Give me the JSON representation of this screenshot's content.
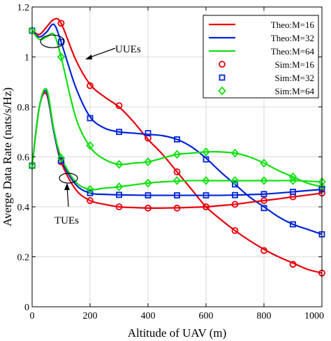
{
  "chart_data": {
    "type": "line",
    "xlabel": "Altitude of UAV (m)",
    "ylabel": "Averge Data Rate (nats/s/Hz)",
    "xlim": [
      0,
      1000
    ],
    "ylim": [
      0,
      1.2
    ],
    "xticks": [
      0,
      200,
      400,
      600,
      800,
      1000
    ],
    "yticks": [
      0,
      0.2,
      0.4,
      0.6,
      0.8,
      1,
      1.2
    ],
    "xtick_labels": [
      "0",
      "200",
      "400",
      "600",
      "800",
      "1000"
    ],
    "ytick_labels": [
      "0",
      "0.2",
      "0.4",
      "0.6",
      "0.8",
      "1",
      "1.2"
    ],
    "grid": true,
    "legend_position": "top-right",
    "colors": {
      "M16": "#e8000b",
      "M32": "#0024d8",
      "M64": "#10e010"
    },
    "series": [
      {
        "name": "Theo:M=16",
        "kind": "line",
        "group": "UUE",
        "color": "#e8000b",
        "x": [
          0,
          25,
          50,
          75,
          100,
          150,
          200,
          250,
          300,
          350,
          400,
          450,
          500,
          550,
          600,
          650,
          700,
          750,
          800,
          850,
          900,
          950,
          1000
        ],
        "y": [
          1.105,
          1.09,
          1.12,
          1.15,
          1.135,
          0.99,
          0.89,
          0.84,
          0.8,
          0.74,
          0.67,
          0.61,
          0.54,
          0.47,
          0.4,
          0.35,
          0.305,
          0.265,
          0.23,
          0.2,
          0.175,
          0.15,
          0.135
        ]
      },
      {
        "name": "Theo:M=32",
        "kind": "line",
        "group": "UUE",
        "color": "#0024d8",
        "x": [
          0,
          25,
          50,
          75,
          100,
          150,
          200,
          250,
          300,
          350,
          400,
          450,
          500,
          550,
          600,
          650,
          700,
          750,
          800,
          850,
          900,
          950,
          1000
        ],
        "y": [
          1.105,
          1.08,
          1.1,
          1.13,
          1.06,
          0.88,
          0.76,
          0.715,
          0.7,
          0.695,
          0.69,
          0.685,
          0.67,
          0.64,
          0.595,
          0.54,
          0.49,
          0.44,
          0.4,
          0.36,
          0.33,
          0.31,
          0.29
        ]
      },
      {
        "name": "Theo:M=64",
        "kind": "line",
        "group": "UUE",
        "color": "#10e010",
        "x": [
          0,
          25,
          50,
          75,
          100,
          150,
          200,
          250,
          300,
          350,
          400,
          450,
          500,
          550,
          600,
          650,
          700,
          750,
          800,
          850,
          900,
          950,
          1000
        ],
        "y": [
          1.105,
          1.07,
          1.08,
          1.09,
          1.0,
          0.76,
          0.64,
          0.59,
          0.57,
          0.575,
          0.58,
          0.595,
          0.61,
          0.615,
          0.62,
          0.62,
          0.615,
          0.6,
          0.575,
          0.545,
          0.52,
          0.495,
          0.48
        ]
      },
      {
        "name": "Theo:M=16",
        "kind": "line",
        "group": "TUE",
        "color": "#e8000b",
        "x": [
          0,
          25,
          50,
          75,
          100,
          150,
          200,
          250,
          300,
          350,
          400,
          450,
          500,
          550,
          600,
          650,
          700,
          750,
          800,
          850,
          900,
          950,
          1000
        ],
        "y": [
          0.565,
          0.8,
          0.85,
          0.7,
          0.58,
          0.47,
          0.425,
          0.41,
          0.4,
          0.397,
          0.395,
          0.395,
          0.396,
          0.398,
          0.4,
          0.405,
          0.41,
          0.418,
          0.425,
          0.432,
          0.44,
          0.447,
          0.455
        ]
      },
      {
        "name": "Theo:M=32",
        "kind": "line",
        "group": "TUE",
        "color": "#0024d8",
        "x": [
          0,
          25,
          50,
          75,
          100,
          150,
          200,
          250,
          300,
          350,
          400,
          450,
          500,
          550,
          600,
          650,
          700,
          750,
          800,
          850,
          900,
          950,
          1000
        ],
        "y": [
          0.565,
          0.8,
          0.86,
          0.7,
          0.59,
          0.49,
          0.455,
          0.45,
          0.448,
          0.447,
          0.446,
          0.446,
          0.446,
          0.446,
          0.446,
          0.446,
          0.447,
          0.449,
          0.451,
          0.455,
          0.46,
          0.465,
          0.47
        ]
      },
      {
        "name": "Theo:M=64",
        "kind": "line",
        "group": "TUE",
        "color": "#10e010",
        "x": [
          0,
          25,
          50,
          75,
          100,
          150,
          200,
          250,
          300,
          350,
          400,
          450,
          500,
          550,
          600,
          650,
          700,
          750,
          800,
          850,
          900,
          950,
          1000
        ],
        "y": [
          0.565,
          0.8,
          0.87,
          0.71,
          0.6,
          0.5,
          0.47,
          0.475,
          0.48,
          0.488,
          0.495,
          0.5,
          0.503,
          0.505,
          0.505,
          0.505,
          0.505,
          0.505,
          0.505,
          0.505,
          0.505,
          0.503,
          0.5
        ]
      },
      {
        "name": "Sim:M=16",
        "kind": "marker",
        "marker": "circle",
        "group": "UUE",
        "color": "#e8000b",
        "x": [
          0,
          100,
          200,
          300,
          400,
          500,
          600,
          700,
          800,
          900,
          1000
        ],
        "y": [
          1.105,
          1.135,
          0.885,
          0.805,
          0.675,
          0.54,
          0.4,
          0.305,
          0.225,
          0.17,
          0.135
        ]
      },
      {
        "name": "Sim:M=32",
        "kind": "marker",
        "marker": "square",
        "group": "UUE",
        "color": "#0024d8",
        "x": [
          0,
          100,
          200,
          300,
          400,
          500,
          600,
          700,
          800,
          900,
          1000
        ],
        "y": [
          1.105,
          1.06,
          0.755,
          0.7,
          0.695,
          0.67,
          0.59,
          0.49,
          0.395,
          0.33,
          0.29
        ]
      },
      {
        "name": "Sim:M=64",
        "kind": "marker",
        "marker": "diamond",
        "group": "UUE",
        "color": "#10e010",
        "x": [
          0,
          100,
          200,
          300,
          400,
          500,
          600,
          700,
          800,
          900,
          1000
        ],
        "y": [
          1.105,
          1.0,
          0.645,
          0.57,
          0.58,
          0.61,
          0.62,
          0.615,
          0.575,
          0.52,
          0.48
        ]
      },
      {
        "name": "Sim:M=16",
        "kind": "marker",
        "marker": "circle",
        "group": "TUE",
        "color": "#e8000b",
        "x": [
          0,
          100,
          200,
          300,
          400,
          500,
          600,
          700,
          800,
          900,
          1000
        ],
        "y": [
          0.565,
          0.58,
          0.425,
          0.4,
          0.395,
          0.395,
          0.4,
          0.41,
          0.425,
          0.44,
          0.455
        ]
      },
      {
        "name": "Sim:M=32",
        "kind": "marker",
        "marker": "square",
        "group": "TUE",
        "color": "#0024d8",
        "x": [
          0,
          100,
          200,
          300,
          400,
          500,
          600,
          700,
          800,
          900,
          1000
        ],
        "y": [
          0.565,
          0.585,
          0.455,
          0.448,
          0.446,
          0.446,
          0.446,
          0.447,
          0.451,
          0.46,
          0.47
        ]
      },
      {
        "name": "Sim:M=64",
        "kind": "marker",
        "marker": "diamond",
        "group": "TUE",
        "color": "#10e010",
        "x": [
          0,
          100,
          200,
          300,
          400,
          500,
          600,
          700,
          800,
          900,
          1000
        ],
        "y": [
          0.565,
          0.595,
          0.47,
          0.48,
          0.495,
          0.505,
          0.505,
          0.505,
          0.505,
          0.505,
          0.5
        ]
      }
    ],
    "legend": [
      {
        "label": "Theo:M=16",
        "style": "line",
        "color": "#e8000b"
      },
      {
        "label": "Theo:M=32",
        "style": "line",
        "color": "#0024d8"
      },
      {
        "label": "Theo:M=64",
        "style": "line",
        "color": "#10e010"
      },
      {
        "label": "Sim:M=16",
        "style": "circle",
        "color": "#e8000b"
      },
      {
        "label": "Sim:M=32",
        "style": "square",
        "color": "#0024d8"
      },
      {
        "label": "Sim:M=64",
        "style": "diamond",
        "color": "#10e010"
      }
    ],
    "annotations": [
      {
        "text": "UUEs",
        "target": [
          140,
          1.04
        ],
        "text_at": [
          295,
          1.1
        ]
      },
      {
        "text": "TUEs",
        "target": [
          120,
          0.5
        ],
        "text_at": [
          110,
          0.34
        ]
      }
    ]
  }
}
